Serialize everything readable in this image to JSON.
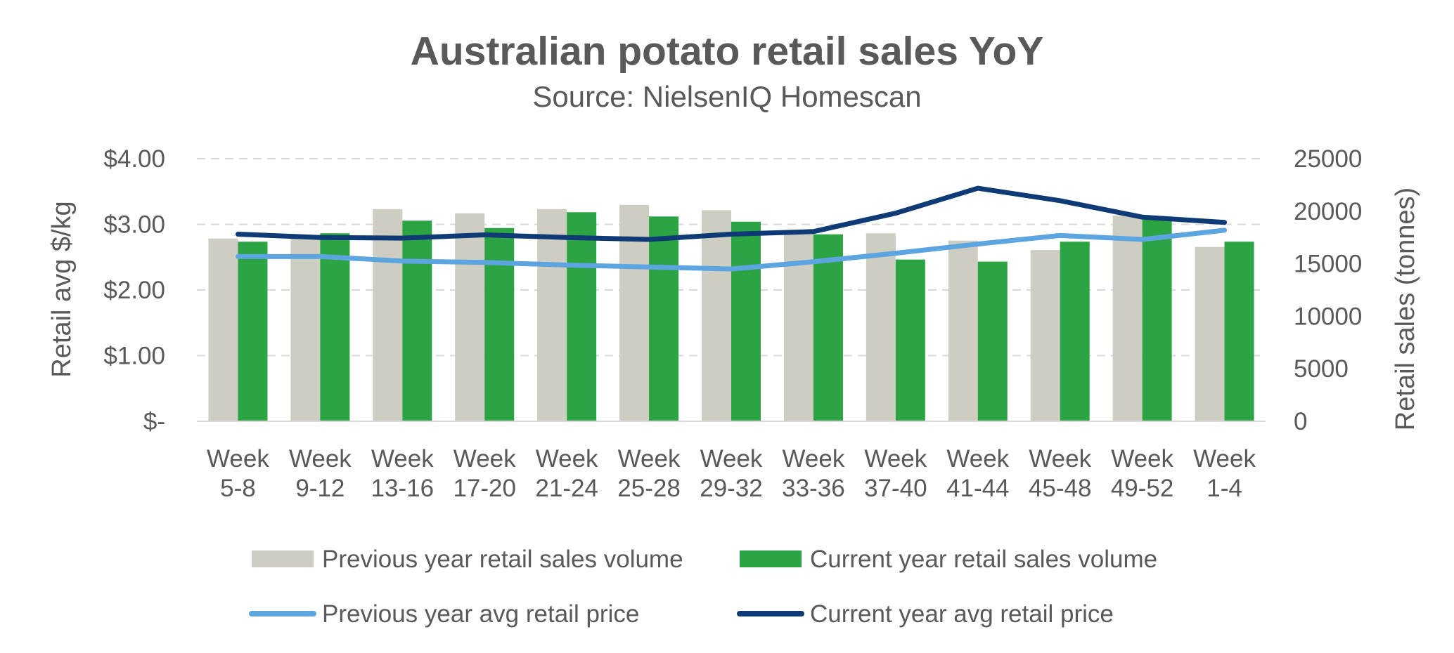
{
  "chart_data": {
    "type": "bar",
    "title": "Australian potato retail sales YoY",
    "subtitle": "Source: NielsenIQ Homescan",
    "categories": [
      [
        "Week",
        "5-8"
      ],
      [
        "Week",
        "9-12"
      ],
      [
        "Week",
        "13-16"
      ],
      [
        "Week",
        "17-20"
      ],
      [
        "Week",
        "21-24"
      ],
      [
        "Week",
        "25-28"
      ],
      [
        "Week",
        "29-32"
      ],
      [
        "Week",
        "33-36"
      ],
      [
        "Week",
        "37-40"
      ],
      [
        "Week",
        "41-44"
      ],
      [
        "Week",
        "45-48"
      ],
      [
        "Week",
        "49-52"
      ],
      [
        "Week",
        "1-4"
      ]
    ],
    "ylabel_left": "Retail avg $/kg",
    "ylabel_right": "Retail sales (tonnes)",
    "y_left_ticks": [
      "$-",
      "$1.00",
      "$2.00",
      "$3.00",
      "$4.00"
    ],
    "y_right_ticks": [
      "0",
      "5000",
      "10000",
      "15000",
      "20000",
      "25000"
    ],
    "ylim_left": [
      0,
      4
    ],
    "ylim_right": [
      0,
      25000
    ],
    "grid": true,
    "legend_position": "bottom",
    "bar_series": [
      {
        "name": "Previous year retail sales volume",
        "axis": "right",
        "color": "#CDCDC1",
        "values": [
          17400,
          17600,
          20200,
          19800,
          20200,
          20600,
          20100,
          18100,
          17900,
          17200,
          16300,
          19600,
          16600
        ]
      },
      {
        "name": "Current year retail sales volume",
        "axis": "right",
        "color": "#2CA444",
        "values": [
          17100,
          17900,
          19100,
          18400,
          19900,
          19500,
          19000,
          17800,
          15400,
          15200,
          17100,
          19200,
          17100
        ]
      }
    ],
    "line_series": [
      {
        "name": "Previous year avg retail price",
        "axis": "left",
        "color": "#5DA5E0",
        "values": [
          2.51,
          2.51,
          2.44,
          2.42,
          2.38,
          2.35,
          2.32,
          2.43,
          2.56,
          2.7,
          2.83,
          2.77,
          2.91
        ]
      },
      {
        "name": "Current year avg retail price",
        "axis": "left",
        "color": "#0E3A75",
        "values": [
          2.85,
          2.8,
          2.79,
          2.84,
          2.8,
          2.77,
          2.85,
          2.89,
          3.17,
          3.55,
          3.36,
          3.11,
          3.03
        ]
      }
    ]
  }
}
